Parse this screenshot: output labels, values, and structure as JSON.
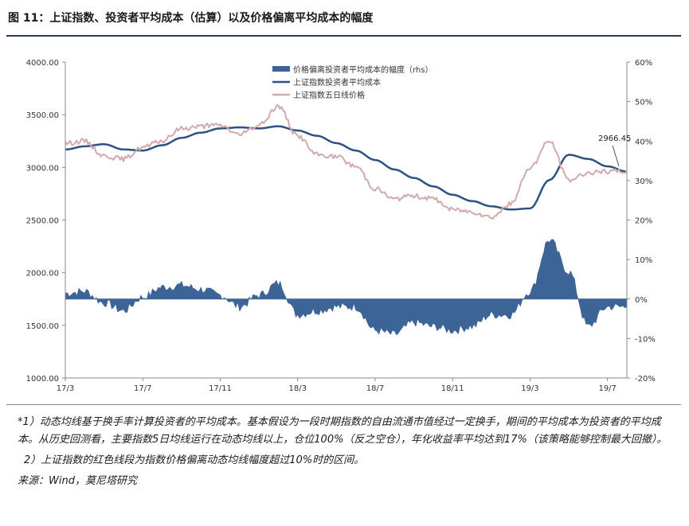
{
  "title": "图 11：上证指数、投资者平均成本（估算）以及价格偏离平均成本的幅度",
  "chart_data": {
    "type": "line",
    "x_ticks": [
      "17/3",
      "17/7",
      "17/11",
      "18/3",
      "18/7",
      "18/11",
      "19/3",
      "19/7"
    ],
    "y_left_ticks": [
      "4000.00",
      "3500.00",
      "3000.00",
      "2500.00",
      "2000.00",
      "1500.00",
      "1000.00"
    ],
    "y_left_range": [
      1000,
      4000
    ],
    "y_right_ticks": [
      "60%",
      "50%",
      "40%",
      "30%",
      "20%",
      "10%",
      "0%",
      "-10%",
      "-20%"
    ],
    "y_right_range": [
      -20,
      60
    ],
    "legend": [
      "价格偏离投资者平均成本的幅度（rhs）",
      "上证指数投资者平均成本",
      "上证指数五日线价格"
    ],
    "legend_placement": "top-center",
    "annotation": "2966.45",
    "series": [
      {
        "name": "价格偏离投资者平均成本的幅度（rhs）",
        "axis": "right",
        "kind": "area",
        "color": "#3c6496",
        "x": [
          "17/3",
          "17/4",
          "17/5",
          "17/6",
          "17/7",
          "17/8",
          "17/9",
          "17/10",
          "17/11",
          "17/12",
          "18/1",
          "18/2",
          "18/3",
          "18/4",
          "18/5",
          "18/6",
          "18/7",
          "18/8",
          "18/9",
          "18/10",
          "18/11",
          "18/12",
          "19/1",
          "19/2",
          "19/3",
          "19/4",
          "19/5",
          "19/6",
          "19/7",
          "19/8"
        ],
        "values": [
          1.5,
          2,
          -1,
          -3,
          0.5,
          3,
          3.5,
          2.5,
          1,
          -2,
          1,
          4,
          -4,
          -3,
          -2,
          -2,
          -8,
          -9,
          -6,
          -7,
          -8,
          -7,
          -4,
          -4,
          2,
          15,
          7,
          -7,
          -2,
          -2
        ]
      },
      {
        "name": "上证指数投资者平均成本",
        "axis": "left",
        "kind": "line",
        "color": "#2d5183",
        "x": [
          "17/3",
          "17/4",
          "17/5",
          "17/6",
          "17/7",
          "17/8",
          "17/9",
          "17/10",
          "17/11",
          "17/12",
          "18/1",
          "18/2",
          "18/3",
          "18/4",
          "18/5",
          "18/6",
          "18/7",
          "18/8",
          "18/9",
          "18/10",
          "18/11",
          "18/12",
          "19/1",
          "19/2",
          "19/3",
          "19/4",
          "19/5",
          "19/6",
          "19/7",
          "19/8"
        ],
        "values": [
          3170,
          3200,
          3220,
          3170,
          3160,
          3210,
          3280,
          3330,
          3370,
          3380,
          3370,
          3390,
          3350,
          3300,
          3230,
          3160,
          3070,
          2980,
          2900,
          2820,
          2740,
          2680,
          2630,
          2600,
          2610,
          2880,
          3120,
          3080,
          3010,
          2960
        ]
      },
      {
        "name": "上证指数五日线价格",
        "axis": "left",
        "kind": "line",
        "color": "#d2a9ad",
        "x": [
          "17/3",
          "17/4",
          "17/5",
          "17/6",
          "17/7",
          "17/8",
          "17/9",
          "17/10",
          "17/11",
          "17/12",
          "18/1",
          "18/2",
          "18/3",
          "18/4",
          "18/5",
          "18/6",
          "18/7",
          "18/8",
          "18/9",
          "18/10",
          "18/11",
          "18/12",
          "19/1",
          "19/2",
          "19/3",
          "19/4",
          "19/5",
          "19/6",
          "19/7",
          "19/8"
        ],
        "values": [
          3230,
          3250,
          3110,
          3080,
          3190,
          3250,
          3370,
          3390,
          3400,
          3310,
          3400,
          3580,
          3300,
          3120,
          3100,
          3010,
          2800,
          2700,
          2730,
          2700,
          2600,
          2580,
          2530,
          2650,
          3000,
          3250,
          2880,
          2950,
          2960,
          2966
        ]
      }
    ]
  },
  "notes": {
    "note1": "*1）动态均线基于换手率计算投资者的平均成本。基本假设为一段时期指数的自由流通市值经过一定换手，期间的平均成本为投资者的平均成本。从历史回测看，主要指数5日均线运行在动态均线以上，仓位100%（反之空仓），年化收益率平均达到17%（该策略能够控制最大回撤）。",
    "note2": "2）上证指数的红色线段为指数价格偏离动态均线幅度超过10%时的区间。",
    "source": "来源：Wind，莫尼塔研究"
  }
}
